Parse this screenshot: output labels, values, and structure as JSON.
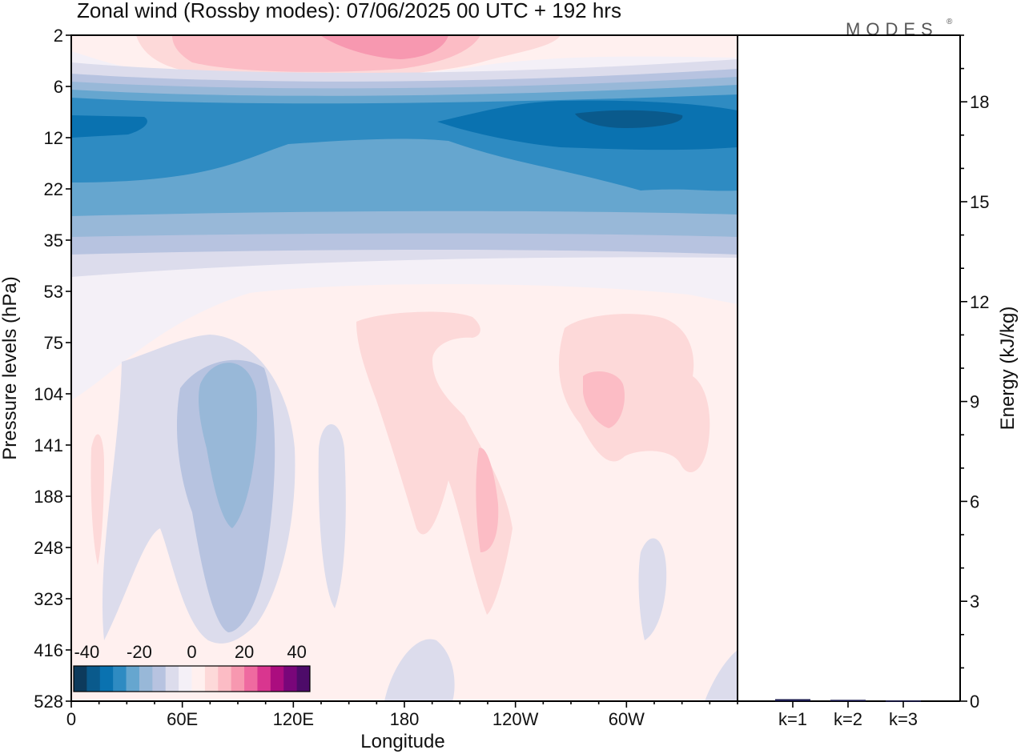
{
  "header": {
    "title": "Zonal wind (Rossby modes):  07/06/2025  00 UTC  + 192 hrs",
    "logo": "MODES",
    "logo_mark": "®"
  },
  "chart_data": [
    {
      "type": "heatmap",
      "title": "Zonal wind (Rossby modes):  07/06/2025  00 UTC  + 192 hrs",
      "xlabel": "Longitude",
      "ylabel": "Pressure levels (hPa)",
      "x_ticks": [
        "0",
        "60E",
        "120E",
        "180",
        "120W",
        "60W"
      ],
      "x_tick_degrees": [
        0,
        60,
        120,
        180,
        240,
        300
      ],
      "xlim": [
        0,
        360
      ],
      "y_ticks": [
        "2",
        "6",
        "12",
        "22",
        "35",
        "53",
        "75",
        "104",
        "141",
        "188",
        "248",
        "323",
        "416",
        "528"
      ],
      "y_scale": "pressure levels, top to bottom",
      "colorbar": {
        "ticks": [
          "-40",
          "-20",
          "0",
          "20",
          "40"
        ],
        "range": [
          -45,
          45
        ],
        "step": 5,
        "colors": [
          "#0d3a5c",
          "#0a5a8c",
          "#0a72b0",
          "#2e8bc2",
          "#66a6cf",
          "#98b8d8",
          "#b7c3e0",
          "#dcdcec",
          "#f4f0f7",
          "#fff0ef",
          "#fdd9d9",
          "#fcbcc5",
          "#f798b0",
          "#ef6aa0",
          "#d9368f",
          "#ab0d7f",
          "#79067a",
          "#4d0b69"
        ]
      },
      "contour_regions": [
        {
          "value": 2.5,
          "lon": [
            0,
            360
          ],
          "levels": [
            "53",
            "528"
          ]
        },
        {
          "value": -7.5,
          "lon": [
            0,
            360
          ],
          "levels": [
            "22",
            "53"
          ]
        },
        {
          "value": -17.5,
          "lon": [
            0,
            360
          ],
          "levels": [
            "6",
            "22"
          ]
        },
        {
          "value": -27.5,
          "lon": [
            0,
            360
          ],
          "levels": [
            "6",
            "12"
          ]
        },
        {
          "value": -32.5,
          "lon": [
            275,
            330
          ],
          "levels": [
            "6",
            "12"
          ]
        },
        {
          "value": 12.5,
          "lon": [
            45,
            195
          ],
          "levels": [
            "2",
            "6"
          ]
        },
        {
          "value": 17.5,
          "lon": [
            165,
            195
          ],
          "levels": [
            "2",
            "6"
          ]
        },
        {
          "value": -12.5,
          "lon": [
            55,
            105
          ],
          "levels": [
            "75",
            "323"
          ]
        },
        {
          "value": -17.5,
          "lon": [
            65,
            100
          ],
          "levels": [
            "104",
            "248"
          ]
        },
        {
          "value": 7.5,
          "lon": [
            155,
            245
          ],
          "levels": [
            "53",
            "416"
          ]
        },
        {
          "value": 7.5,
          "lon": [
            260,
            340
          ],
          "levels": [
            "75",
            "188"
          ]
        },
        {
          "value": 12.5,
          "lon": [
            220,
            235
          ],
          "levels": [
            "141",
            "248"
          ]
        },
        {
          "value": 12.5,
          "lon": [
            278,
            300
          ],
          "levels": [
            "104",
            "141"
          ]
        }
      ]
    },
    {
      "type": "bar",
      "categories": [
        "k=1",
        "k=2",
        "k=3"
      ],
      "values": [
        0.06,
        0.04,
        0.02
      ],
      "ylabel": "Energy (kJ/kg)",
      "ylim": [
        0,
        20
      ],
      "y_ticks": [
        "0",
        "3",
        "6",
        "9",
        "12",
        "15",
        "18"
      ],
      "bar_color": "#1a1a4e"
    }
  ]
}
